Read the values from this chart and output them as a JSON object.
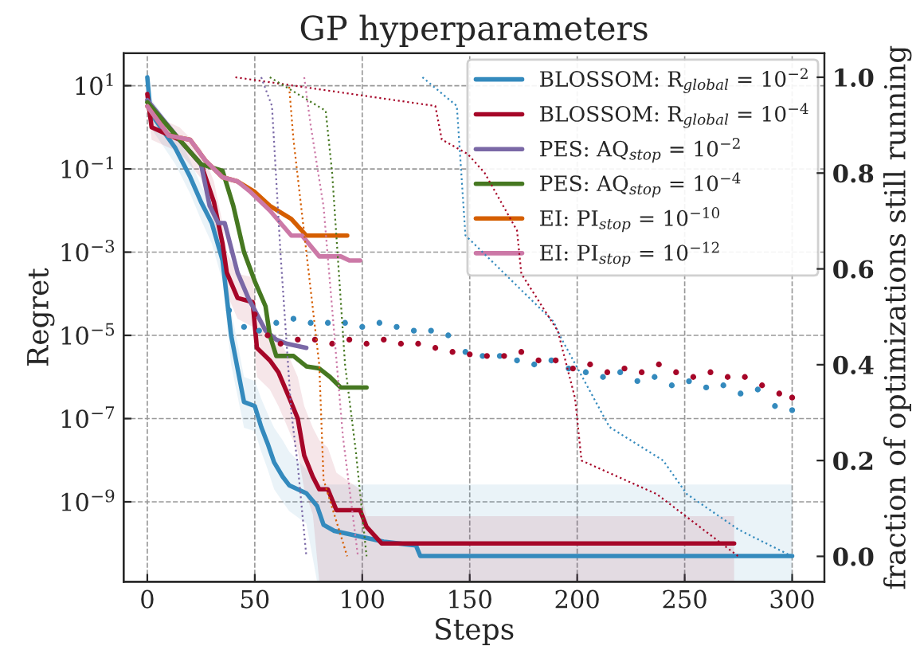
{
  "chart_data": {
    "type": "line",
    "title": "GP hyperparameters",
    "xlabel": "Steps",
    "ylabel": "Regret",
    "y2label": "fraction of optimizations still running",
    "log": "y",
    "grid": true,
    "legend": "top right",
    "xlim": [
      -11,
      315
    ],
    "xticks": [
      0,
      50,
      100,
      150,
      200,
      250,
      300
    ],
    "ylim": [
      1.2e-11,
      60
    ],
    "yticks": [
      {
        "value": 10,
        "label": "10$^{1}$"
      },
      {
        "value": 0.1,
        "label": "10$^{−1}$"
      },
      {
        "value": 0.001,
        "label": "10$^{−3}$"
      },
      {
        "value": 1e-05,
        "label": "10$^{−5}$"
      },
      {
        "value": 1e-07,
        "label": "10$^{−7}$"
      },
      {
        "value": 1e-09,
        "label": "10$^{−9}$"
      }
    ],
    "y2lim": [
      -0.053,
      1.05
    ],
    "y2ticks": [
      {
        "value": 0,
        "label": "0.0"
      },
      {
        "value": 0.2,
        "label": "0.2"
      },
      {
        "value": 0.4,
        "label": "0.4"
      },
      {
        "value": 0.6,
        "label": "0.6"
      },
      {
        "value": 0.8,
        "label": "0.8"
      },
      {
        "value": 1,
        "label": "1.0"
      }
    ],
    "series": [
      {
        "name": "BLOSSOM: R$_{global}$ = 10$^{−2}$",
        "color": "#348abd",
        "line_style": "solid",
        "x": [
          0,
          1.5,
          13,
          20,
          25,
          30,
          35,
          37,
          39,
          45,
          50,
          53,
          56,
          59,
          63,
          66,
          74,
          79,
          82,
          87,
          110,
          125,
          127,
          300
        ],
        "values": [
          16,
          2.2,
          0.32,
          0.063,
          0.016,
          0.005,
          0.00063,
          7.9e-05,
          1e-05,
          2.5e-07,
          2e-07,
          6.3e-08,
          2.5e-08,
          8.9e-09,
          4e-09,
          2.5e-09,
          1.6e-09,
          7.9e-10,
          2.8e-10,
          2e-10,
          1.1e-10,
          8.9e-11,
          5e-11,
          5e-11
        ],
        "upper": [
          25,
          5,
          0.8,
          0.16,
          0.04,
          0.013,
          0.0016,
          0.00025,
          4e-05,
          1e-06,
          8e-07,
          3e-07,
          1.3e-07,
          6e-08,
          3e-08,
          1.6e-08,
          6e-09,
          2.6e-09,
          2.6e-09,
          2.6e-09,
          2.6e-09,
          2.6e-09,
          2.6e-09,
          2.6e-09
        ],
        "lower": [
          10,
          1,
          0.13,
          0.025,
          0.006,
          0.0016,
          0.0002,
          2e-05,
          2e-06,
          6e-08,
          5e-08,
          1.6e-08,
          6e-09,
          2e-09,
          1e-09,
          6e-10,
          3e-10,
          1.2e-11,
          1.2e-11,
          1.2e-11,
          1.2e-11,
          1.2e-11,
          1.2e-11,
          1.2e-11
        ]
      },
      {
        "name": "BLOSSOM: R$_{global}$ = 10$^{−4}$",
        "color": "#a60628",
        "line_style": "solid",
        "x": [
          0,
          2,
          15,
          25,
          31,
          35,
          37,
          42,
          49,
          51,
          57,
          61,
          66,
          70,
          73,
          77,
          80,
          84,
          88,
          99,
          102,
          109,
          273
        ],
        "values": [
          6.3,
          1,
          0.5,
          0.13,
          0.016,
          0.0016,
          0.00032,
          7.9e-05,
          6.3e-05,
          5e-06,
          2.5e-06,
          1.3e-06,
          3.2e-07,
          1e-07,
          1.3e-08,
          4e-09,
          2e-09,
          2e-09,
          6.3e-10,
          6.3e-10,
          2.5e-10,
          1e-10,
          1e-10
        ],
        "upper": [
          10,
          2,
          1,
          0.3,
          0.05,
          0.005,
          0.001,
          0.0003,
          0.00025,
          3e-05,
          1.3e-05,
          8e-06,
          3e-06,
          1e-06,
          2e-07,
          6e-08,
          3e-08,
          2e-08,
          5e-09,
          2e-09,
          4.5e-10,
          4.5e-10,
          4.5e-10
        ],
        "lower": [
          4,
          0.5,
          0.25,
          0.06,
          0.005,
          0.0005,
          0.0001,
          2.5e-05,
          1.6e-05,
          1e-06,
          5e-07,
          2e-07,
          5e-08,
          1.6e-08,
          2e-09,
          5e-10,
          1.2e-11,
          1.2e-11,
          1.2e-11,
          1.2e-11,
          1.2e-11,
          1.2e-11,
          1.2e-11
        ]
      },
      {
        "name": "PES: AQ$_{stop}$ = 10$^{−2}$",
        "color": "#7a68a6",
        "line_style": "solid",
        "x": [
          0,
          15,
          25,
          29,
          33,
          36,
          42,
          47,
          55,
          60,
          65,
          74
        ],
        "values": [
          4.5,
          0.5,
          0.13,
          0.013,
          0.005,
          0.005,
          0.00032,
          7.9e-05,
          1.3e-05,
          7.9e-06,
          6.3e-06,
          5e-06
        ]
      },
      {
        "name": "PES: AQ$_{stop}$ = 10$^{−4}$",
        "color": "#467821",
        "line_style": "solid",
        "x": [
          0,
          15,
          25,
          35,
          40,
          45,
          50,
          55,
          57,
          60,
          68,
          74,
          80,
          85,
          90,
          102
        ],
        "values": [
          4,
          0.5,
          0.13,
          0.09,
          0.013,
          0.001,
          0.0002,
          5e-05,
          1e-05,
          3.2e-06,
          3.2e-06,
          1.8e-06,
          1.6e-06,
          1e-06,
          5.6e-07,
          5.6e-07
        ]
      },
      {
        "name": "EI: PI$_{stop}$ = 10$^{−10}$",
        "color": "#d55e00",
        "line_style": "solid",
        "x": [
          0,
          10,
          20,
          27,
          35,
          42,
          50,
          57,
          67,
          74,
          93
        ],
        "values": [
          3.2,
          0.63,
          0.5,
          0.16,
          0.063,
          0.05,
          0.028,
          0.013,
          0.0063,
          0.0025,
          0.0025
        ]
      },
      {
        "name": "EI: PI$_{stop}$ = 10$^{−12}$",
        "color": "#cc79a7",
        "line_style": "solid",
        "x": [
          0,
          10,
          20,
          27,
          35,
          42,
          48,
          57,
          67,
          72,
          80,
          90,
          94,
          99
        ],
        "values": [
          3.2,
          0.63,
          0.5,
          0.16,
          0.063,
          0.05,
          0.028,
          0.01,
          0.0025,
          0.0025,
          0.00079,
          0.00079,
          0.00063,
          0.00063
        ]
      },
      {
        "type": "scatter",
        "color": "#348abd",
        "marker": "circle",
        "x": [
          38,
          45,
          52,
          60,
          68,
          76,
          84,
          92,
          100,
          108,
          116,
          124,
          132,
          140,
          148,
          156,
          164,
          172,
          180,
          188,
          196,
          204,
          212,
          220,
          228,
          236,
          244,
          252,
          260,
          268,
          276,
          284,
          292,
          300
        ],
        "values": [
          4e-05,
          1.6e-05,
          1.3e-05,
          2e-05,
          2.5e-05,
          2e-05,
          2e-05,
          2e-05,
          1.6e-05,
          2e-05,
          1.6e-05,
          1.3e-05,
          1.3e-05,
          1e-05,
          4e-06,
          3.2e-06,
          3.2e-06,
          2.5e-06,
          2e-06,
          2.5e-06,
          1.6e-06,
          1.3e-06,
          1e-06,
          1.3e-06,
          8e-07,
          1e-06,
          6.3e-07,
          7.9e-07,
          5.6e-07,
          6.3e-07,
          4e-07,
          5e-07,
          2e-07,
          1.6e-07
        ]
      },
      {
        "type": "scatter",
        "color": "#a60628",
        "marker": "circle",
        "x": [
          50,
          56,
          62,
          70,
          78,
          86,
          94,
          102,
          110,
          118,
          126,
          134,
          142,
          150,
          158,
          166,
          174,
          182,
          190,
          198,
          206,
          214,
          222,
          230,
          238,
          246,
          254,
          262,
          270,
          278,
          286,
          294,
          300
        ],
        "values": [
          3.2e-05,
          1e-05,
          6.3e-06,
          7.9e-06,
          7.9e-06,
          6.3e-06,
          7.9e-06,
          6.3e-06,
          7.9e-06,
          6.3e-06,
          6.3e-06,
          5e-06,
          4e-06,
          3.5e-06,
          3.2e-06,
          3.2e-06,
          4e-06,
          2.5e-06,
          2.5e-06,
          1.6e-06,
          2e-06,
          1.3e-06,
          1.6e-06,
          1.3e-06,
          2e-06,
          1.3e-06,
          1e-06,
          1.3e-06,
          1e-06,
          1e-06,
          6.3e-07,
          4e-07,
          3.2e-07
        ]
      },
      {
        "axis": "y2",
        "color": "#348abd",
        "line_style": "dotted",
        "x": [
          128,
          144,
          148,
          189,
          192,
          215,
          240,
          251,
          275,
          300
        ],
        "values": [
          1.0,
          0.94,
          0.67,
          0.49,
          0.46,
          0.27,
          0.2,
          0.13,
          0.056,
          0
        ]
      },
      {
        "axis": "y2",
        "color": "#a60628",
        "line_style": "dotted",
        "x": [
          41,
          134,
          137,
          149,
          157,
          172,
          174,
          191,
          199,
          202,
          237,
          275
        ],
        "values": [
          1.0,
          0.94,
          0.87,
          0.84,
          0.8,
          0.68,
          0.59,
          0.47,
          0.33,
          0.2,
          0.13,
          0
        ]
      },
      {
        "axis": "y2",
        "color": "#7a68a6",
        "line_style": "dotted",
        "x": [
          53,
          58,
          62,
          67,
          70,
          74
        ],
        "values": [
          1.0,
          0.94,
          0.63,
          0.3,
          0.19,
          0
        ]
      },
      {
        "axis": "y2",
        "color": "#467821",
        "line_style": "dotted",
        "x": [
          57,
          83,
          86,
          92,
          97,
          102
        ],
        "values": [
          1.0,
          0.93,
          0.8,
          0.4,
          0.22,
          0
        ]
      },
      {
        "axis": "y2",
        "color": "#d55e00",
        "line_style": "dotted",
        "x": [
          66,
          68,
          80,
          82,
          93
        ],
        "values": [
          0.98,
          0.87,
          0.4,
          0.16,
          0
        ]
      },
      {
        "axis": "y2",
        "color": "#cc79a7",
        "line_style": "dotted",
        "x": [
          73,
          76,
          82,
          91,
          98
        ],
        "values": [
          1.0,
          0.9,
          0.73,
          0.25,
          0
        ]
      }
    ]
  }
}
